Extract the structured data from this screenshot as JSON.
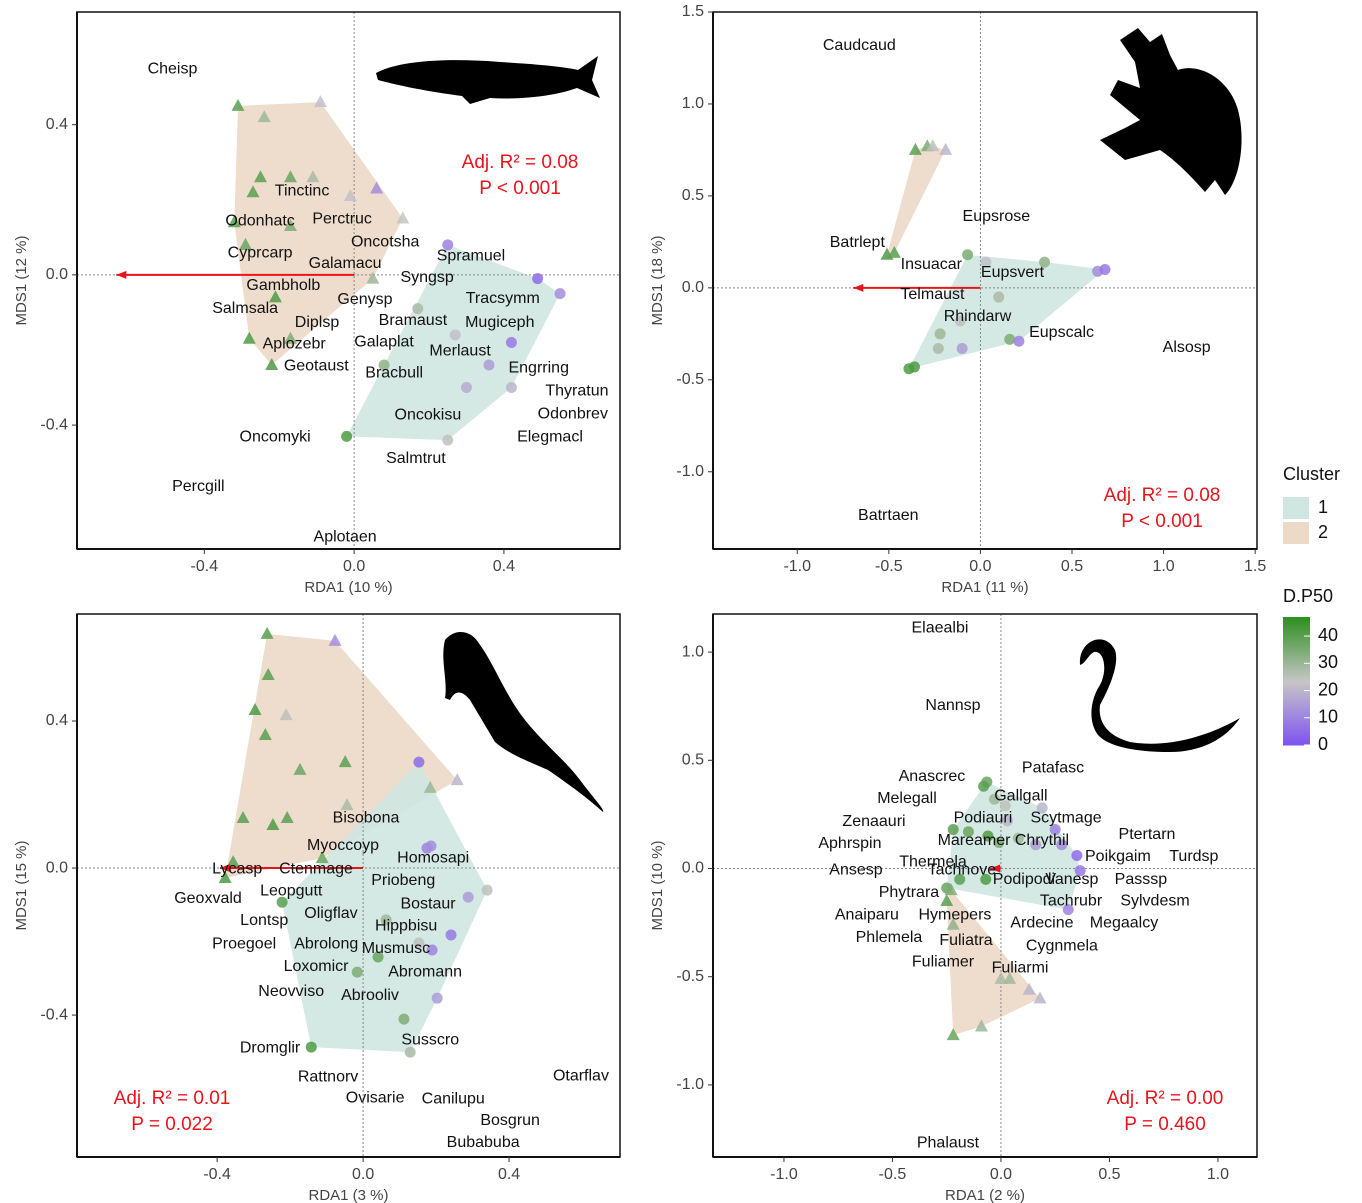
{
  "chart_data": [
    {
      "type": "scatter",
      "xlabel": "RDA1 (10 %)",
      "ylabel": "MDS1 (12 %)",
      "xlim": [
        -0.74,
        0.71
      ],
      "ylim": [
        -0.73,
        0.7
      ],
      "xticks": [
        -0.4,
        {
          "value": 0,
          "label": "0.0"
        },
        0.4
      ],
      "yticks": [
        -0.4,
        {
          "value": 0,
          "label": "0.0"
        },
        0.4
      ],
      "annotations": [
        "Adj. R² = 0.08",
        "P < 0.001"
      ],
      "arrow": {
        "x": -0.635,
        "y": 0
      },
      "sites": {
        "x": [
          -0.31,
          -0.09,
          -0.24,
          -0.25,
          -0.17,
          -0.11,
          -0.01,
          0.06,
          0.13,
          -0.27,
          -0.32,
          -0.17,
          -0.29,
          -0.21,
          -0.28,
          -0.22,
          -0.17,
          0.05,
          0.25,
          0.49,
          0.55,
          0.42,
          0.36,
          0.3,
          0.42,
          0.25,
          -0.02,
          0.08,
          0.27,
          0.17
        ],
        "y": [
          0.45,
          0.46,
          0.42,
          0.26,
          0.26,
          0.26,
          0.21,
          0.23,
          0.15,
          0.22,
          0.14,
          0.13,
          0.08,
          -0.06,
          -0.17,
          -0.24,
          -0.17,
          -0.01,
          0.08,
          -0.01,
          -0.05,
          -0.18,
          -0.24,
          -0.3,
          -0.3,
          -0.44,
          -0.43,
          -0.24,
          -0.16,
          -0.09
        ],
        "cluster": [
          2,
          2,
          2,
          2,
          2,
          2,
          2,
          2,
          2,
          2,
          2,
          2,
          2,
          2,
          2,
          2,
          2,
          2,
          1,
          1,
          1,
          1,
          1,
          1,
          1,
          1,
          1,
          1,
          1,
          1
        ],
        "dp50": [
          40,
          22,
          30,
          40,
          38,
          28,
          22,
          12,
          24,
          40,
          40,
          35,
          38,
          42,
          42,
          42,
          35,
          30,
          10,
          5,
          12,
          8,
          15,
          18,
          20,
          25,
          42,
          32,
          22,
          28
        ]
      },
      "species": {
        "names": [
          "Cheisp",
          "Tinctinc",
          "Odonhatc",
          "Perctruc",
          "Oncotsha",
          "Cyprcarp",
          "Spramuel",
          "Galamacu",
          "Syngsp",
          "Gambholb",
          "Tracsymm",
          "Genysp",
          "Salmsala",
          "Diplsp",
          "Bramaust",
          "Mugiceph",
          "Aplozebr",
          "Galaplat",
          "Merlaust",
          "Geotaust",
          "Bracbull",
          "Engrring",
          "Thyratun",
          "Odonbrev",
          "Oncokisu",
          "Oncomyki",
          "Elegmacl",
          "Salmtrut",
          "Percgill",
          "Aplotaen"
        ],
        "x": [
          -0.485,
          -0.139,
          -0.251,
          -0.032,
          0.083,
          -0.251,
          0.312,
          -0.024,
          0.195,
          -0.189,
          0.397,
          0.029,
          -0.291,
          -0.099,
          0.157,
          0.389,
          -0.16,
          0.08,
          0.283,
          -0.101,
          0.107,
          0.493,
          0.595,
          0.584,
          0.197,
          -0.211,
          0.523,
          0.165,
          -0.416,
          -0.024
        ],
        "y": [
          0.548,
          0.223,
          0.143,
          0.148,
          0.087,
          0.058,
          0.05,
          0.029,
          -0.008,
          -0.029,
          -0.064,
          -0.066,
          -0.09,
          -0.127,
          -0.122,
          -0.127,
          -0.185,
          -0.18,
          -0.204,
          -0.244,
          -0.262,
          -0.249,
          -0.31,
          -0.371,
          -0.374,
          -0.432,
          -0.432,
          -0.49,
          -0.564,
          -0.699
        ]
      }
    },
    {
      "type": "scatter",
      "xlabel": "RDA1 (11 %)",
      "ylabel": "MDS1 (18 %)",
      "xlim": [
        -1.46,
        1.51
      ],
      "ylim": [
        -1.42,
        1.5
      ],
      "xticks": [
        {
          "value": -1,
          "label": "-1.0"
        },
        -0.5,
        {
          "value": 0,
          "label": "0.0"
        },
        0.5,
        {
          "value": 1,
          "label": "1.0"
        },
        1.5
      ],
      "yticks": [
        {
          "value": -1,
          "label": "-1.0"
        },
        -0.5,
        {
          "value": 0,
          "label": "0.0"
        },
        0.5,
        {
          "value": 1,
          "label": "1.0"
        },
        1.5
      ],
      "annotations": [
        "Adj. R² = 0.08",
        "P < 0.001"
      ],
      "arrow": {
        "x": -0.694,
        "y": 0
      },
      "sites": {
        "x": [
          -0.355,
          -0.29,
          -0.26,
          -0.19,
          -0.51,
          -0.47,
          -0.07,
          0.03,
          0.35,
          0.64,
          0.68,
          0.1,
          -0.22,
          -0.23,
          -0.1,
          0.16,
          0.21,
          -0.39,
          -0.36,
          -0.11
        ],
        "y": [
          0.75,
          0.77,
          0.77,
          0.75,
          0.18,
          0.19,
          0.18,
          0.14,
          0.14,
          0.09,
          0.1,
          -0.05,
          -0.25,
          -0.33,
          -0.33,
          -0.28,
          -0.29,
          -0.44,
          -0.43,
          -0.18
        ],
        "cluster": [
          2,
          2,
          2,
          2,
          2,
          2,
          1,
          1,
          1,
          1,
          1,
          1,
          1,
          1,
          1,
          1,
          1,
          1,
          1,
          1
        ],
        "dp50": [
          40,
          35,
          25,
          20,
          42,
          40,
          35,
          22,
          32,
          12,
          8,
          28,
          30,
          28,
          15,
          35,
          10,
          42,
          42,
          25
        ]
      },
      "species": {
        "names": [
          "Caudcaud",
          "Eupsrose",
          "Batrlept",
          "Insuacar",
          "Eupsvert",
          "Telmaust",
          "Rhindarw",
          "Eupscalc",
          "Alsosp",
          "Batrtaen"
        ],
        "x": [
          -0.661,
          0.087,
          -0.672,
          -0.268,
          0.175,
          -0.262,
          -0.016,
          0.443,
          1.126,
          -0.503
        ],
        "y": [
          1.315,
          0.386,
          0.245,
          0.125,
          0.082,
          -0.038,
          -0.158,
          -0.245,
          -0.326,
          -1.239
        ]
      }
    },
    {
      "type": "scatter",
      "xlabel": "RDA1 (3 %)",
      "ylabel": "MDS1 (15 %)",
      "xlim": [
        -0.784,
        0.704
      ],
      "ylim": [
        -0.786,
        0.691
      ],
      "xticks": [
        -0.4,
        {
          "value": 0,
          "label": "0.0"
        },
        0.4
      ],
      "yticks": [
        -0.4,
        {
          "value": 0,
          "label": "0.0"
        },
        0.4
      ],
      "annotations": [
        "Adj. R² = 0.01",
        "P = 0.022"
      ],
      "arrow": {
        "x": -0.392,
        "y": 0
      },
      "sites": {
        "x": [
          -0.263,
          -0.077,
          -0.26,
          -0.296,
          -0.211,
          -0.268,
          -0.049,
          -0.173,
          -0.329,
          -0.247,
          -0.208,
          -0.044,
          0.184,
          0.258,
          -0.356,
          -0.378,
          -0.112,
          0.153,
          0.175,
          0.186,
          0.34,
          0.288,
          0.241,
          0.189,
          0.153,
          0.041,
          -0.016,
          0.112,
          0.129,
          0.203,
          -0.142,
          -0.222,
          0.063
        ],
        "y": [
          0.637,
          0.618,
          0.525,
          0.43,
          0.416,
          0.362,
          0.288,
          0.267,
          0.136,
          0.117,
          0.136,
          0.171,
          0.218,
          0.239,
          0.016,
          -0.027,
          0.027,
          0.288,
          0.054,
          0.06,
          -0.06,
          -0.079,
          -0.182,
          -0.223,
          -0.204,
          -0.242,
          -0.283,
          -0.411,
          -0.501,
          -0.354,
          -0.487,
          -0.093,
          -0.141
        ],
        "cluster": [
          2,
          2,
          2,
          2,
          2,
          2,
          2,
          2,
          2,
          2,
          2,
          2,
          2,
          2,
          2,
          2,
          2,
          1,
          1,
          1,
          1,
          1,
          1,
          1,
          1,
          1,
          1,
          1,
          1,
          1,
          1,
          1,
          1
        ],
        "dp50": [
          40,
          12,
          40,
          42,
          25,
          40,
          40,
          38,
          40,
          42,
          40,
          28,
          30,
          20,
          40,
          42,
          38,
          5,
          10,
          12,
          25,
          15,
          8,
          10,
          25,
          38,
          35,
          35,
          28,
          15,
          42,
          40,
          30
        ]
      },
      "species": {
        "names": [
          "Bisobona",
          "Myoccoyp",
          "Homosapi",
          "Lycasp",
          "Ctenmage",
          "Priobeng",
          "Leopgutt",
          "Geoxvald",
          "Bostaur",
          "Oligflav",
          "Lontsp",
          "Hippbisu",
          "Proegoel",
          "Abrolong",
          "Musmusc",
          "Loxomicr",
          "Abromann",
          "Neovviso",
          "Abrooliv",
          "Susscro",
          "Dromglir",
          "Otarflav",
          "Rattnorv",
          "Ovisarie",
          "Canilupu",
          "Bosgrun",
          "Bubabuba"
        ],
        "x": [
          0.008,
          -0.055,
          0.192,
          -0.345,
          -0.129,
          0.11,
          -0.197,
          -0.425,
          0.178,
          -0.088,
          -0.271,
          0.118,
          -0.326,
          -0.101,
          0.09,
          -0.129,
          0.17,
          -0.197,
          0.019,
          0.184,
          -0.255,
          0.597,
          -0.096,
          0.033,
          0.247,
          0.403,
          0.329
        ],
        "y": [
          0.136,
          0.06,
          0.027,
          -0.003,
          -0.003,
          -0.035,
          -0.063,
          -0.084,
          -0.098,
          -0.125,
          -0.144,
          -0.158,
          -0.207,
          -0.207,
          -0.22,
          -0.269,
          -0.283,
          -0.337,
          -0.348,
          -0.468,
          -0.49,
          -0.566,
          -0.569,
          -0.626,
          -0.629,
          -0.688,
          -0.748
        ]
      }
    },
    {
      "type": "scatter",
      "xlabel": "RDA1 (2 %)",
      "ylabel": "MDS1 (10 %)",
      "xlim": [
        -1.327,
        1.18
      ],
      "ylim": [
        -1.333,
        1.176
      ],
      "xticks": [
        {
          "value": -1,
          "label": "-1.0"
        },
        -0.5,
        {
          "value": 0,
          "label": "0.0"
        },
        0.5,
        {
          "value": 1,
          "label": "1.0"
        }
      ],
      "yticks": [
        {
          "value": -1,
          "label": "-1.0"
        },
        -0.5,
        {
          "value": 0,
          "label": "0.0"
        },
        0.5,
        {
          "value": 1,
          "label": "1.0"
        }
      ],
      "annotations": [
        "Adj. R² = 0.00",
        "P = 0.460"
      ],
      "arrow": {
        "x": -0.05,
        "y": 0
      },
      "sites": {
        "x": [
          -0.065,
          -0.08,
          -0.03,
          0.02,
          0.19,
          0.25,
          0.28,
          0.35,
          0.365,
          -0.22,
          -0.15,
          -0.06,
          -0.01,
          0.08,
          0.16,
          -0.19,
          -0.25,
          -0.07,
          0.31,
          0.03,
          -0.23,
          -0.22,
          0.0,
          0.04,
          0.13,
          0.18,
          -0.09,
          -0.22,
          -0.25
        ],
        "y": [
          0.4,
          0.38,
          0.32,
          0.29,
          0.28,
          0.18,
          0.11,
          0.06,
          -0.01,
          0.18,
          0.17,
          0.15,
          0.12,
          0.14,
          0.11,
          -0.05,
          -0.09,
          -0.05,
          -0.19,
          0.22,
          -0.1,
          -0.26,
          -0.51,
          -0.51,
          -0.56,
          -0.6,
          -0.73,
          -0.77,
          -0.15
        ],
        "cluster": [
          1,
          1,
          1,
          1,
          1,
          1,
          1,
          1,
          1,
          1,
          1,
          1,
          1,
          1,
          1,
          1,
          1,
          1,
          1,
          1,
          2,
          2,
          2,
          2,
          2,
          2,
          2,
          2,
          2
        ],
        "dp50": [
          38,
          40,
          30,
          25,
          20,
          10,
          12,
          5,
          8,
          40,
          38,
          42,
          35,
          30,
          15,
          40,
          38,
          42,
          10,
          20,
          35,
          32,
          28,
          30,
          20,
          20,
          30,
          38,
          40
        ]
      },
      "species": {
        "names": [
          "Elaealbi",
          "Nannsp",
          "Patafasc",
          "Anascrec",
          "Gallgall",
          "Melegall",
          "Zenaauri",
          "Podiauri",
          "Scytmage",
          "Ptertarn",
          "Aphrspin",
          "Mareamer",
          "Chrythil",
          "Poikgaim",
          "Turdsp",
          "Thermela",
          "Tachnove",
          "Ansesp",
          "Podipodi",
          "Vanesp",
          "Passsp",
          "Phytrara",
          "Tachrubr",
          "Sylvdesm",
          "Anaiparu",
          "Hymepers",
          "Ardecine",
          "Megaalcy",
          "Phlemela",
          "Fuliatra",
          "Cygnmela",
          "Fuliamer",
          "Fuliarmi",
          "Phalaust"
        ],
        "x": [
          -0.281,
          -0.221,
          0.24,
          -0.318,
          0.092,
          -0.433,
          -0.585,
          -0.083,
          0.3,
          0.673,
          -0.696,
          -0.124,
          0.189,
          0.539,
          0.889,
          -0.313,
          -0.18,
          -0.668,
          0.106,
          0.327,
          0.645,
          -0.424,
          0.323,
          0.71,
          -0.618,
          -0.212,
          0.189,
          0.567,
          -0.516,
          -0.161,
          0.281,
          -0.267,
          0.088,
          -0.244
        ],
        "y": [
          1.109,
          0.753,
          0.462,
          0.425,
          0.333,
          0.323,
          0.217,
          0.231,
          0.231,
          0.157,
          0.115,
          0.129,
          0.129,
          0.055,
          0.055,
          0.028,
          -0.009,
          -0.009,
          -0.051,
          -0.051,
          -0.051,
          -0.111,
          -0.152,
          -0.152,
          -0.217,
          -0.217,
          -0.254,
          -0.254,
          -0.319,
          -0.333,
          -0.36,
          -0.434,
          -0.462,
          -1.27
        ]
      }
    }
  ],
  "legend": {
    "cluster_title": "Cluster",
    "cluster_labels": [
      "1",
      "2"
    ],
    "cluster_colors": [
      "#cfe6e1",
      "#ecd9c6"
    ],
    "color_title": "D.P50",
    "color_lim": [
      0,
      47
    ],
    "color_ticks": [
      0,
      10,
      20,
      30,
      40
    ],
    "colormap": [
      "#7d52f2",
      "#c6c6c6",
      "#2e8f1f"
    ]
  }
}
